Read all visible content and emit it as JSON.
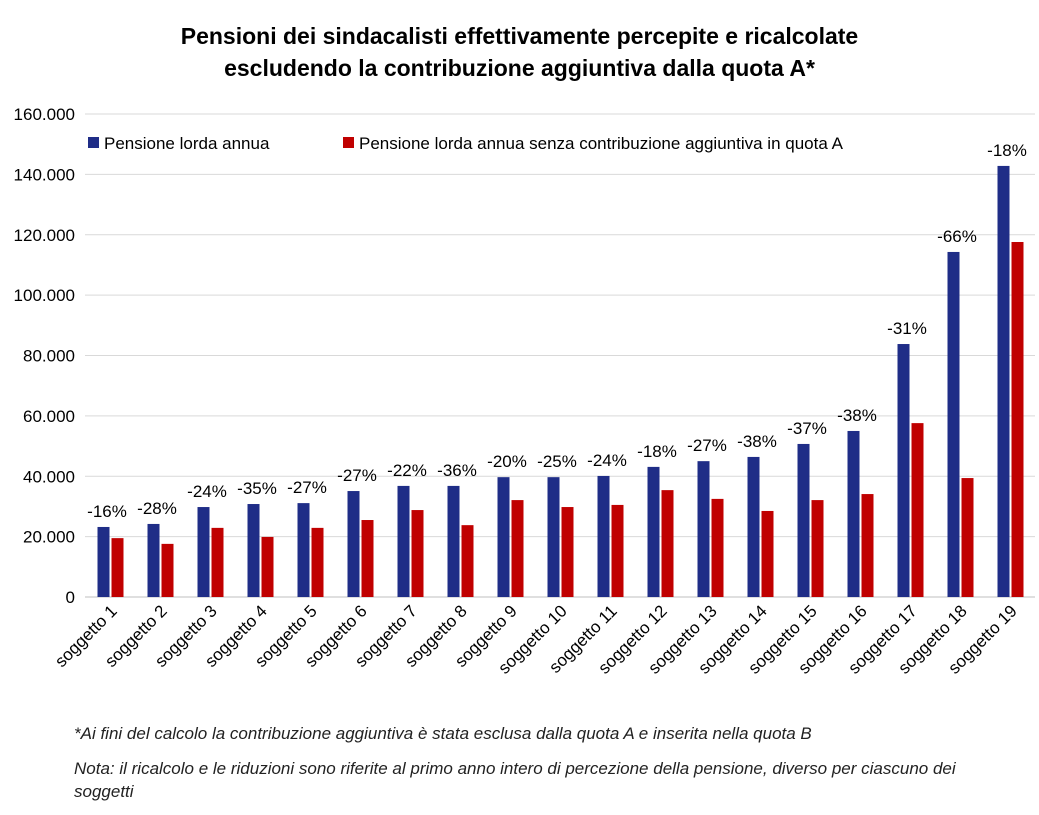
{
  "chart_data": {
    "type": "bar",
    "title": "Pensioni dei sindacalisti effettivamente percepite e ricalcolate escludendo la contribuzione aggiuntiva dalla quota A*",
    "title_lines": [
      "Pensioni dei sindacalisti effettivamente percepite e ricalcolate",
      "escludendo la contribuzione aggiuntiva dalla quota A*"
    ],
    "categories": [
      "soggetto 1",
      "soggetto 2",
      "soggetto 3",
      "soggetto 4",
      "soggetto 5",
      "soggetto 6",
      "soggetto 7",
      "soggetto 8",
      "soggetto 9",
      "soggetto 10",
      "soggetto 11",
      "soggetto 12",
      "soggetto 13",
      "soggetto 14",
      "soggetto 15",
      "soggetto 16",
      "soggetto 17",
      "soggetto 18",
      "soggetto 19"
    ],
    "series": [
      {
        "name": "Pensione lorda annua",
        "color": "#1f2d87",
        "values": [
          23200,
          24200,
          29800,
          30800,
          31100,
          35100,
          36800,
          36800,
          39700,
          39700,
          40100,
          43100,
          45000,
          46400,
          50700,
          55000,
          83800,
          114300,
          142800
        ]
      },
      {
        "name": "Pensione lorda annua senza contribuzione aggiuntiva in quota A",
        "color": "#c00000",
        "values": [
          19500,
          17600,
          22900,
          19900,
          22900,
          25500,
          28800,
          23800,
          32100,
          29800,
          30500,
          35400,
          32500,
          28500,
          32100,
          34100,
          57600,
          39400,
          117600
        ]
      }
    ],
    "data_labels": [
      "-16%",
      "-28%",
      "-24%",
      "-35%",
      "-27%",
      "-27%",
      "-22%",
      "-36%",
      "-20%",
      "-25%",
      "-24%",
      "-18%",
      "-27%",
      "-38%",
      "-37%",
      "-38%",
      "-31%",
      "-66%",
      "-18%"
    ],
    "yticks": [
      "0",
      "20.000",
      "40.000",
      "60.000",
      "80.000",
      "100.000",
      "120.000",
      "140.000",
      "160.000"
    ],
    "ylim": [
      0,
      160000
    ],
    "grid": true,
    "legend": "top-left"
  },
  "footnotes": {
    "asterisk": "*Ai fini del calcolo la contribuzione aggiuntiva è stata esclusa dalla quota A e inserita nella quota B",
    "nota": "Nota: il ricalcolo e le riduzioni sono riferite al primo anno intero di percezione della pensione, diverso per ciascuno dei soggetti"
  }
}
